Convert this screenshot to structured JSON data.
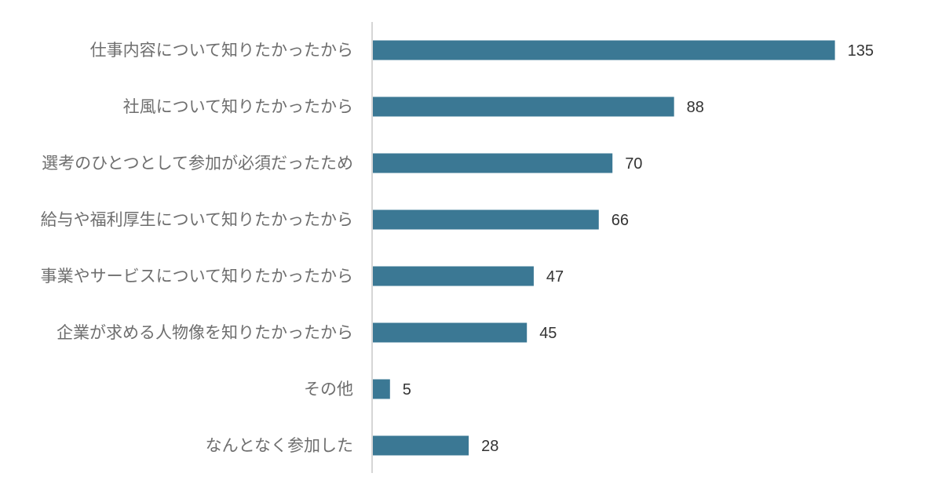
{
  "chart_data": {
    "type": "bar",
    "orientation": "horizontal",
    "categories": [
      "仕事内容について知りたかったから",
      "社風について知りたかったから",
      "選考のひとつとして参加が必須だったため",
      "給与や福利厚生について知りたかったから",
      "事業やサービスについて知りたかったから",
      "企業が求める人物像を知りたかったから",
      "その他",
      "なんとなく参加した"
    ],
    "values": [
      135,
      88,
      70,
      66,
      47,
      45,
      5,
      28
    ],
    "xlim": [
      0,
      160
    ],
    "grid": false,
    "data_labels": true,
    "bar_color": "#3b7894",
    "axis_color": "#c8c8c8"
  }
}
